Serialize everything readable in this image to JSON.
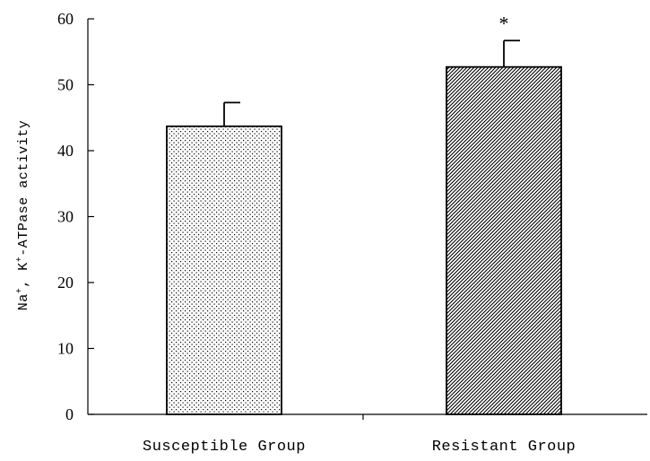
{
  "chart_data": {
    "type": "bar",
    "categories": [
      "Susceptible Group",
      "Resistant Group"
    ],
    "values": [
      43.7,
      52.7
    ],
    "errors": [
      3.6,
      4.0
    ],
    "patterns": [
      "dots",
      "diagonal"
    ],
    "annotations": [
      "",
      "*"
    ],
    "title": "",
    "xlabel": "",
    "ylabel": {
      "parts": [
        "Na",
        "+",
        ", K",
        "+",
        "-ATPase activity"
      ]
    },
    "ylim": [
      0,
      60
    ],
    "yticks": [
      0,
      10,
      20,
      30,
      40,
      50,
      60
    ],
    "grid": false,
    "legend": "none",
    "colors": {
      "stroke": "#000000",
      "background": "#ffffff"
    }
  }
}
